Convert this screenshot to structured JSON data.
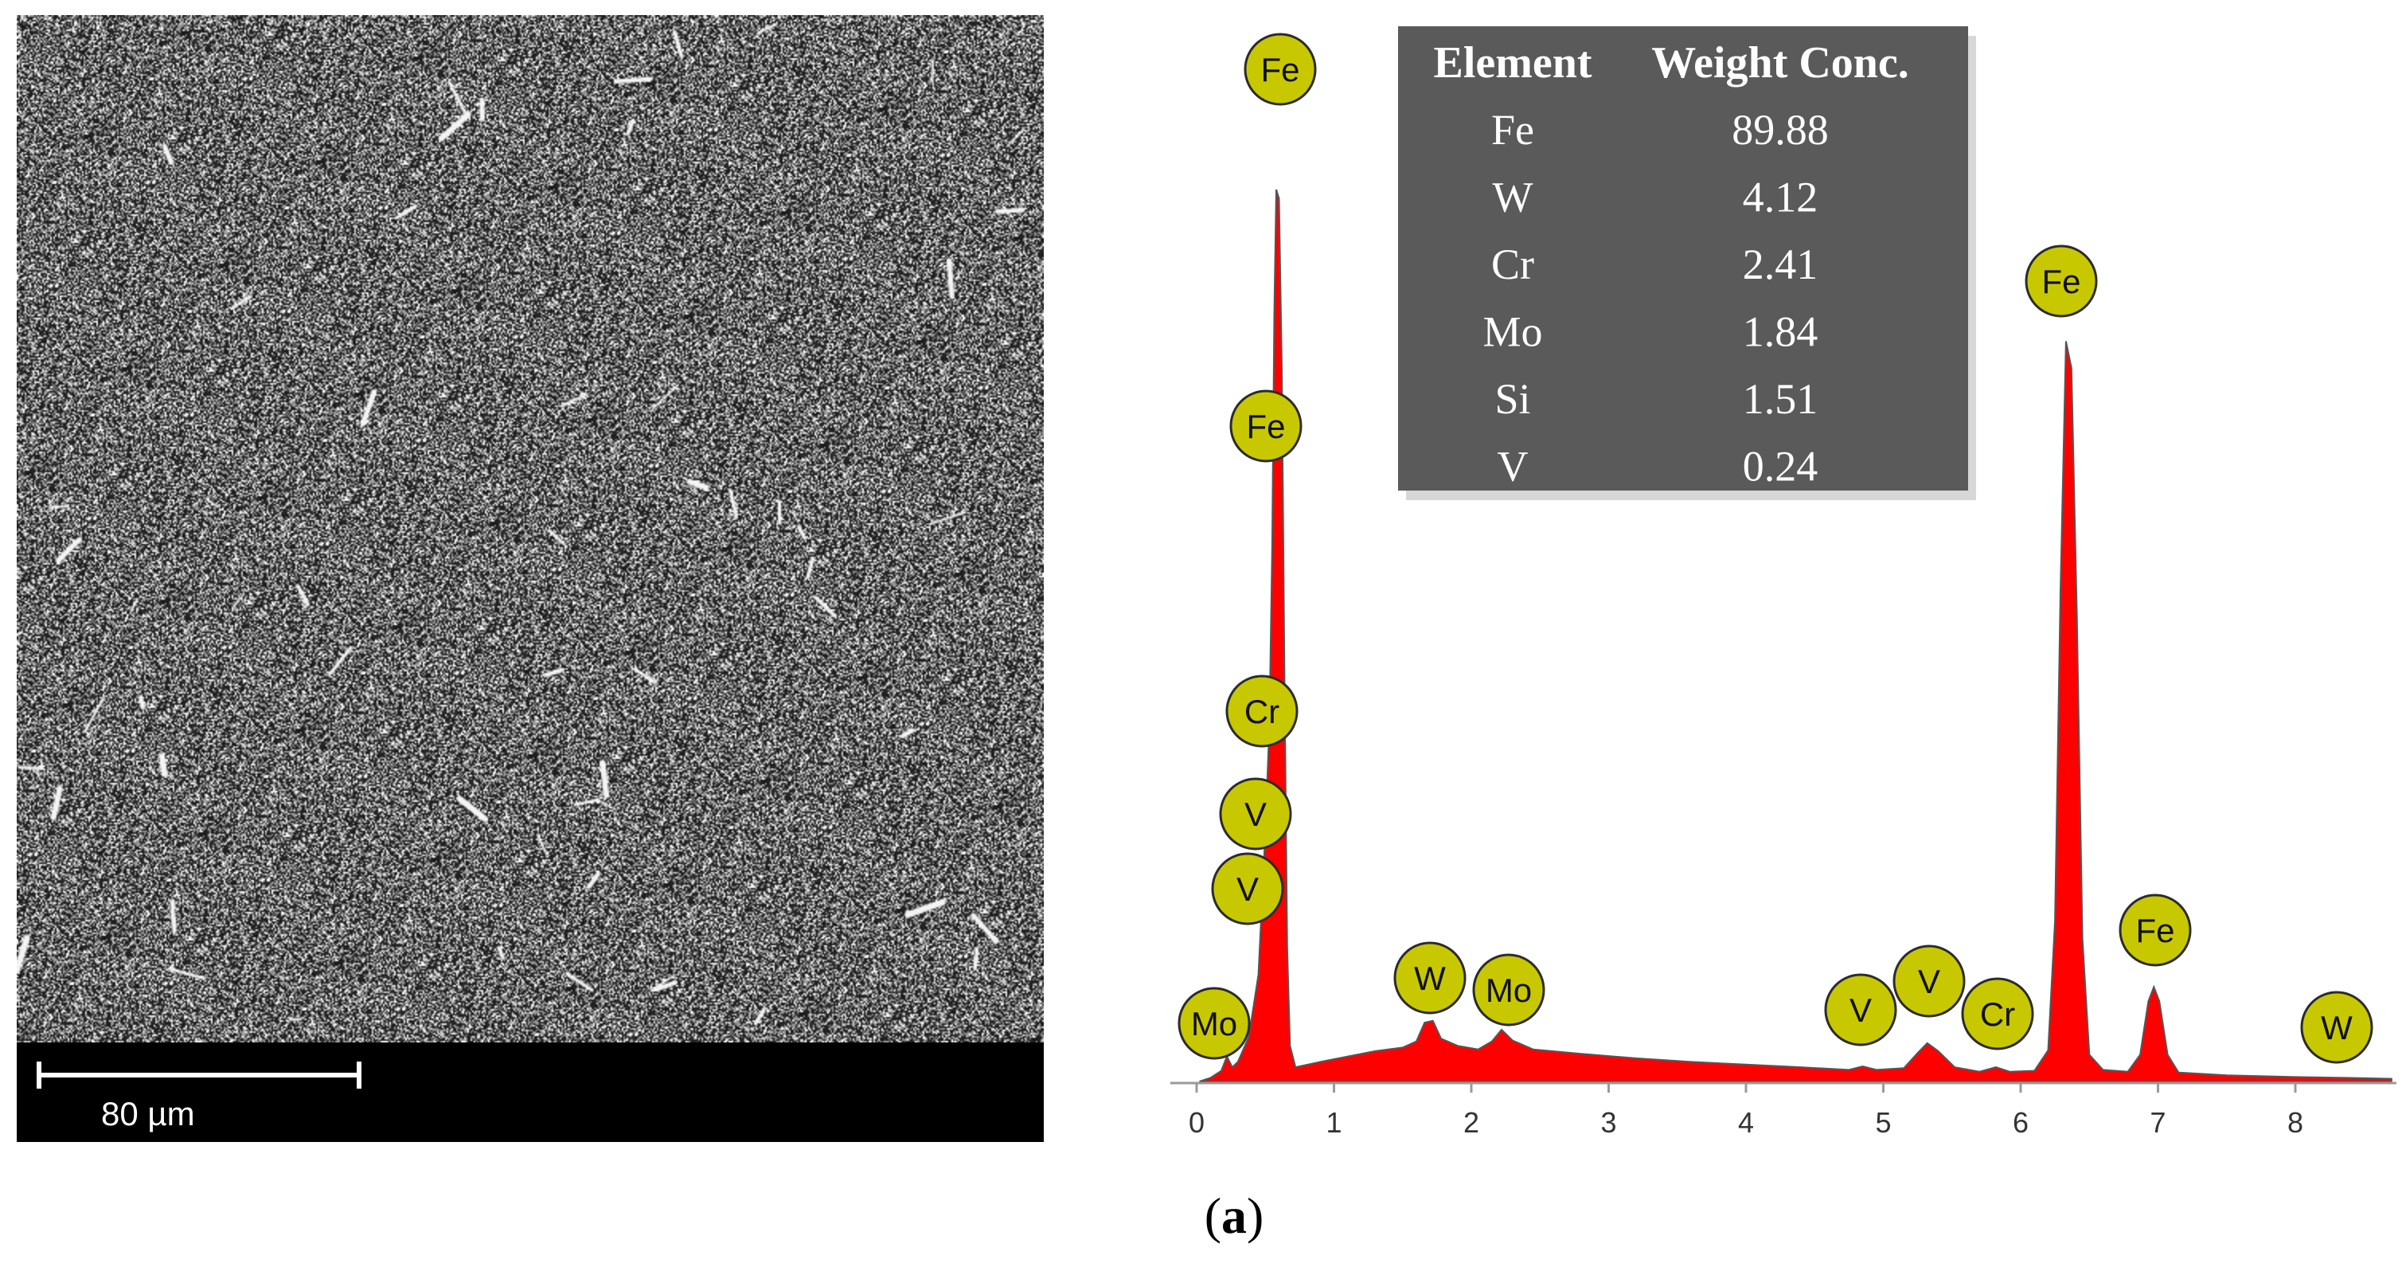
{
  "figure": {
    "panel_label": "a",
    "sem": {
      "scale_label": "80 µm",
      "colors": {
        "background": "#2a2a2a",
        "strip": "#000000"
      }
    }
  },
  "chart_data": {
    "type": "line",
    "xlabel": "",
    "ylabel": "",
    "x_ticks": [
      0,
      1,
      2,
      3,
      4,
      5,
      6,
      7,
      8
    ],
    "xlim": [
      0,
      8.7
    ],
    "ylim": [
      0,
      100
    ],
    "fill_color": "#ff0000",
    "badge_color": "#c8c800",
    "spectrum": [
      [
        0.02,
        0
      ],
      [
        0.1,
        0.4
      ],
      [
        0.18,
        1.2
      ],
      [
        0.22,
        2.8
      ],
      [
        0.26,
        1.6
      ],
      [
        0.3,
        2.2
      ],
      [
        0.34,
        3.6
      ],
      [
        0.38,
        5
      ],
      [
        0.4,
        7
      ],
      [
        0.45,
        12
      ],
      [
        0.5,
        28
      ],
      [
        0.53,
        40
      ],
      [
        0.55,
        60
      ],
      [
        0.565,
        86
      ],
      [
        0.58,
        100
      ],
      [
        0.6,
        99
      ],
      [
        0.62,
        80
      ],
      [
        0.64,
        45
      ],
      [
        0.66,
        15
      ],
      [
        0.68,
        4
      ],
      [
        0.72,
        1.6
      ],
      [
        0.9,
        2.2
      ],
      [
        1.1,
        2.8
      ],
      [
        1.3,
        3.4
      ],
      [
        1.5,
        3.8
      ],
      [
        1.6,
        4.5
      ],
      [
        1.66,
        6.6
      ],
      [
        1.72,
        6.8
      ],
      [
        1.78,
        4.8
      ],
      [
        1.9,
        4
      ],
      [
        2.05,
        3.6
      ],
      [
        2.15,
        4.5
      ],
      [
        2.22,
        5.8
      ],
      [
        2.3,
        4.6
      ],
      [
        2.45,
        3.6
      ],
      [
        2.8,
        3.1
      ],
      [
        3.2,
        2.6
      ],
      [
        3.6,
        2.2
      ],
      [
        4.0,
        1.9
      ],
      [
        4.4,
        1.6
      ],
      [
        4.75,
        1.3
      ],
      [
        4.85,
        1.7
      ],
      [
        4.95,
        1.3
      ],
      [
        5.15,
        1.5
      ],
      [
        5.25,
        3.2
      ],
      [
        5.32,
        4.3
      ],
      [
        5.4,
        3.4
      ],
      [
        5.52,
        1.6
      ],
      [
        5.7,
        1.1
      ],
      [
        5.82,
        1.6
      ],
      [
        5.92,
        1.1
      ],
      [
        6.1,
        1.2
      ],
      [
        6.2,
        3.5
      ],
      [
        6.25,
        18
      ],
      [
        6.29,
        55
      ],
      [
        6.33,
        83
      ],
      [
        6.37,
        80
      ],
      [
        6.41,
        52
      ],
      [
        6.45,
        16
      ],
      [
        6.5,
        3
      ],
      [
        6.6,
        1.3
      ],
      [
        6.78,
        1.1
      ],
      [
        6.87,
        3
      ],
      [
        6.93,
        9
      ],
      [
        6.97,
        10.6
      ],
      [
        7.01,
        9
      ],
      [
        7.07,
        3
      ],
      [
        7.15,
        1
      ],
      [
        7.5,
        0.7
      ],
      [
        8.0,
        0.5
      ],
      [
        8.4,
        0.4
      ],
      [
        8.7,
        0.3
      ]
    ],
    "peak_labels": [
      {
        "element": "Fe",
        "energy": 0.58,
        "level": 98
      },
      {
        "element": "Fe",
        "energy": 0.58,
        "level": 63
      },
      {
        "element": "Cr",
        "energy": 0.52,
        "level": 35
      },
      {
        "element": "V",
        "energy": 0.5,
        "level": 24.5
      },
      {
        "element": "V",
        "energy": 0.45,
        "level": 18.5
      },
      {
        "element": "Mo",
        "energy": 0.14,
        "level": 4.5
      },
      {
        "element": "W",
        "energy": 1.71,
        "level": 9.6
      },
      {
        "element": "Mo",
        "energy": 2.27,
        "level": 8.7
      },
      {
        "element": "V",
        "energy": 4.93,
        "level": 7.6
      },
      {
        "element": "V",
        "energy": 5.36,
        "level": 8.8
      },
      {
        "element": "Cr",
        "energy": 5.96,
        "level": 7.4
      },
      {
        "element": "Fe",
        "energy": 6.4,
        "level": 78
      },
      {
        "element": "Fe",
        "energy": 6.96,
        "level": 14.7
      },
      {
        "element": "W",
        "energy": 8.42,
        "level": 5.7
      }
    ],
    "table": {
      "headers": [
        "Element",
        "Weight Conc."
      ],
      "rows": [
        [
          "Fe",
          "89.88"
        ],
        [
          "W",
          "4.12"
        ],
        [
          "Cr",
          "2.41"
        ],
        [
          "Mo",
          "1.84"
        ],
        [
          "Si",
          "1.51"
        ],
        [
          "V",
          "0.24"
        ]
      ],
      "background": "#5a5a5a",
      "text_color": "#ffffff"
    }
  }
}
